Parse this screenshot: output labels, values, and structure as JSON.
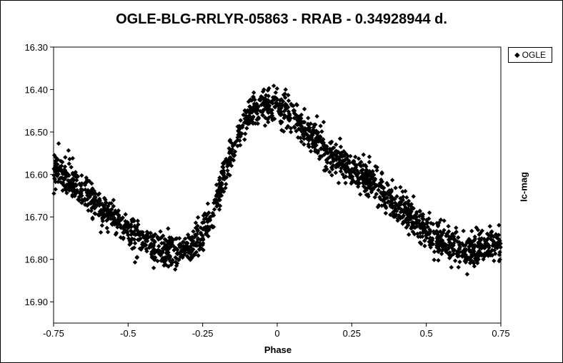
{
  "chart_data": {
    "type": "scatter",
    "title": "OGLE-BLG-RRLYR-05863 - RRAB - 0.34928944 d.",
    "xlabel": "Phase",
    "ylabel": "Ic-mag",
    "xlim": [
      -0.75,
      0.75
    ],
    "ylim": [
      16.3,
      16.95
    ],
    "y_inverted": true,
    "xticks": [
      "-0.75",
      "-0.5",
      "-0.25",
      "0",
      "0.25",
      "0.5",
      "0.75"
    ],
    "yticks": [
      "16.30",
      "16.40",
      "16.50",
      "16.60",
      "16.70",
      "16.80",
      "16.90"
    ],
    "grid": false,
    "legend": {
      "position": "top-right",
      "entries": [
        "OGLE"
      ]
    },
    "series": [
      {
        "name": "OGLE",
        "marker": "diamond",
        "color": "#000000",
        "light_curve": {
          "phase": [
            -0.75,
            -0.7,
            -0.65,
            -0.6,
            -0.55,
            -0.5,
            -0.45,
            -0.4,
            -0.35,
            -0.3,
            -0.25,
            -0.22,
            -0.2,
            -0.18,
            -0.15,
            -0.12,
            -0.1,
            -0.08,
            -0.05,
            0.0,
            0.05,
            0.1,
            0.15,
            0.2,
            0.25,
            0.3,
            0.35,
            0.4,
            0.45,
            0.5,
            0.55,
            0.6,
            0.65,
            0.7,
            0.75
          ],
          "mag": [
            16.59,
            16.61,
            16.64,
            16.67,
            16.7,
            16.73,
            16.76,
            16.77,
            16.78,
            16.77,
            16.74,
            16.7,
            16.65,
            16.6,
            16.54,
            16.49,
            16.46,
            16.45,
            16.44,
            16.44,
            16.46,
            16.5,
            16.53,
            16.57,
            16.59,
            16.61,
            16.64,
            16.67,
            16.7,
            16.73,
            16.76,
            16.77,
            16.78,
            16.77,
            16.76
          ]
        },
        "n_points": 1900,
        "scatter_sigma_mag": 0.02
      }
    ]
  }
}
